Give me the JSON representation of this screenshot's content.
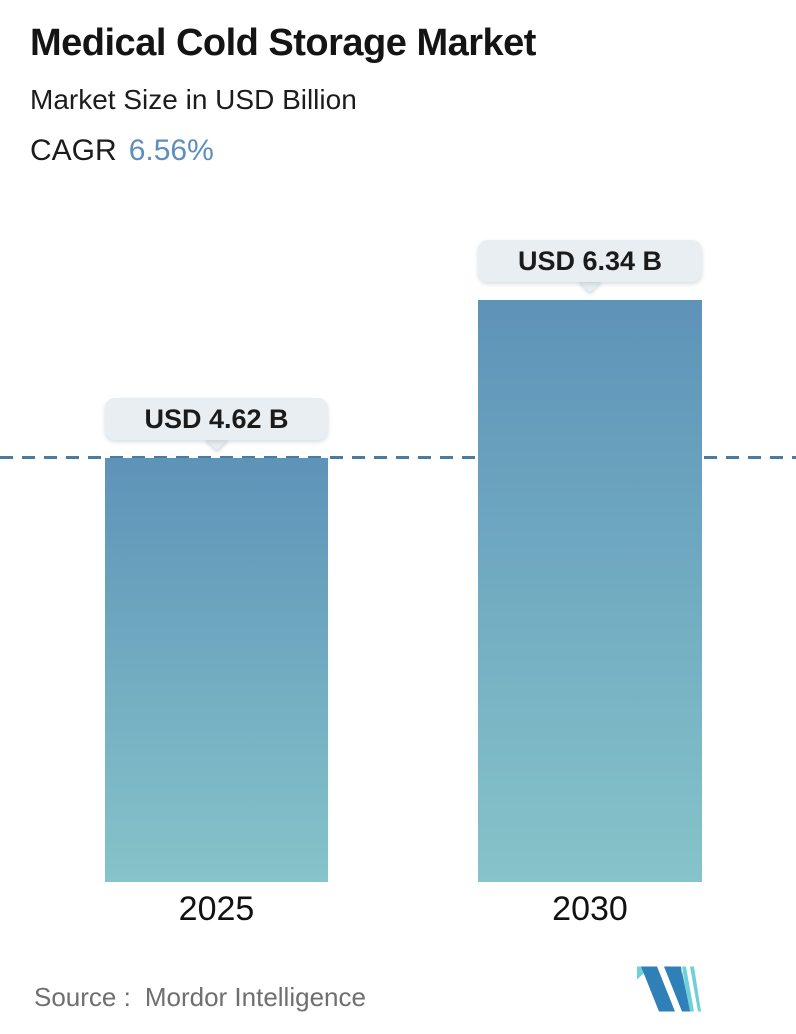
{
  "header": {
    "title": "Medical Cold Storage Market",
    "subtitle": "Market Size in USD Billion",
    "cagr_label": "CAGR",
    "cagr_value": "6.56%"
  },
  "chart_data": {
    "type": "bar",
    "title": "Medical Cold Storage Market",
    "subtitle": "Market Size in USD Billion",
    "unit": "USD Billion",
    "cagr_percent": 6.56,
    "categories": [
      "2025",
      "2030"
    ],
    "values": [
      4.62,
      6.34
    ],
    "value_labels": [
      "USD 4.62 B",
      "USD 6.34 B"
    ],
    "ylim": [
      0,
      6.9
    ],
    "grid": false,
    "legend": "none",
    "reference_line": {
      "value": 4.62,
      "style": "dashed"
    },
    "colors": {
      "bar_gradient_top": "#5e93b8",
      "bar_gradient_bottom": "#85c4ca",
      "dashed_line": "#4a7ba3",
      "cagr_accent": "#5d8fbe",
      "badge_bg": "#e8eef1",
      "badge_text": "#1b1b1b",
      "source_text": "#6f6f6f",
      "logo_blue": "#2f7fb8",
      "logo_teal": "#6fd1d6"
    }
  },
  "footer": {
    "source_label": "Source :",
    "source_value": "Mordor Intelligence",
    "logo_name": "mordor-intelligence-logo"
  }
}
